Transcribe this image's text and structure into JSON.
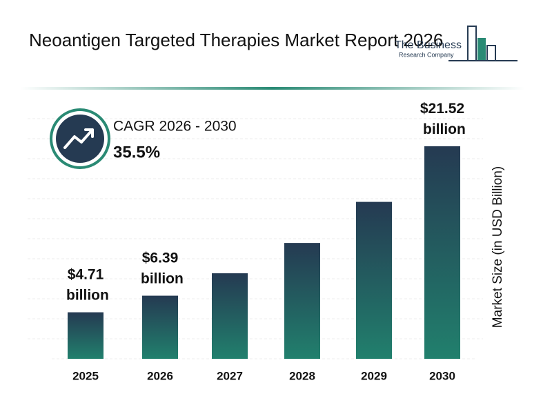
{
  "header": {
    "title": "Neoantigen Targeted Therapies Market Report 2026",
    "logo_line1": "The Business",
    "logo_line2": "Research Company"
  },
  "cagr": {
    "label": "CAGR 2026 - 2030",
    "value": "35.5%"
  },
  "chart_data": {
    "type": "bar",
    "y_axis_label": "Market Size (in USD Billion)",
    "categories": [
      "2025",
      "2026",
      "2027",
      "2028",
      "2029",
      "2030"
    ],
    "values": [
      4.71,
      6.39,
      8.66,
      11.73,
      15.89,
      21.52
    ],
    "value_labels": [
      "$4.71 billion",
      "$6.39 billion",
      null,
      null,
      null,
      "$21.52 billion"
    ],
    "color": [
      "#253a52",
      "#21806d"
    ]
  }
}
